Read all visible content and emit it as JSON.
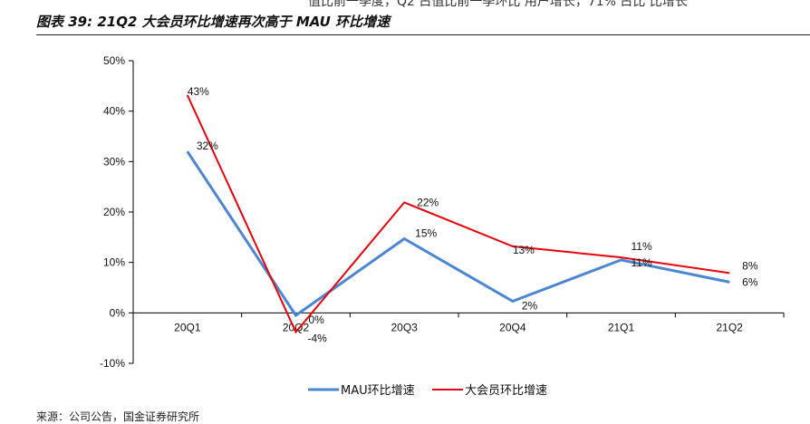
{
  "header": {
    "cut_text": "值比前一季度，Q2 占值比前一季环比 用户增长，71% 占比 比增长",
    "title": "图表 39:  21Q2 大会员环比增速再次高于 MAU 环比增速"
  },
  "footer": {
    "source": "来源：公司公告，国金证券研究所"
  },
  "chart_data": {
    "type": "line",
    "categories": [
      "20Q1",
      "20Q2",
      "20Q3",
      "20Q4",
      "21Q1",
      "21Q2"
    ],
    "ylim": [
      -10,
      50
    ],
    "yticks": [
      -10,
      0,
      10,
      20,
      30,
      40,
      50
    ],
    "ytick_labels": [
      "-10%",
      "0%",
      "10%",
      "20%",
      "30%",
      "40%",
      "50%"
    ],
    "grid": false,
    "legend_position": "bottom",
    "series": [
      {
        "name": "MAU环比增速",
        "color": "#4A86D2",
        "values": [
          32,
          -0.5,
          14.7,
          2.3,
          10.5,
          6.1
        ],
        "labels": [
          "32%",
          "0%",
          "15%",
          "2%",
          "11%",
          "6%"
        ]
      },
      {
        "name": "大会员环比增速",
        "color": "#E8000B",
        "values": [
          43.2,
          -3.8,
          21.9,
          13.2,
          11,
          7.9
        ],
        "labels": [
          "43%",
          "-4%",
          "22%",
          "13%",
          "11%",
          "8%"
        ]
      }
    ]
  }
}
